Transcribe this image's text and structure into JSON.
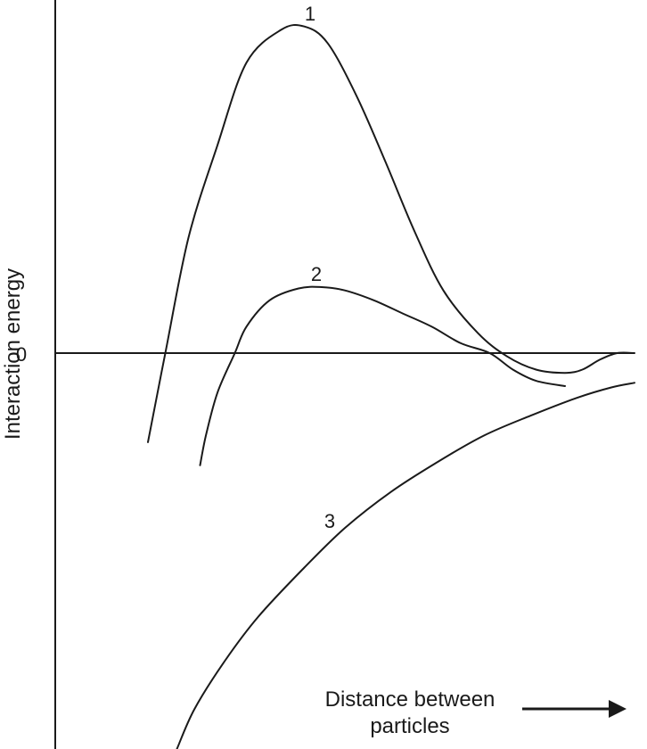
{
  "chart_data": {
    "type": "line",
    "ylabel": "Interaction energy",
    "xlabel": "Distance between particles",
    "xlabel_lines": [
      "Distance between",
      "particles"
    ],
    "y_ticks": [
      "0"
    ],
    "x_arrow_icon": "right-arrow-icon",
    "grid": false,
    "xlim": [
      0,
      10
    ],
    "ylim": [
      -6,
      5
    ],
    "series": [
      {
        "name": "1",
        "x": [
          1.6,
          1.9,
          2.3,
          2.8,
          3.3,
          3.9,
          4.3,
          4.7,
          5.2,
          5.7,
          6.2,
          6.7,
          7.3,
          7.8,
          8.3,
          8.8,
          9.1,
          9.4,
          9.7,
          10.0
        ],
        "y": [
          -1.35,
          0.0,
          1.75,
          3.15,
          4.4,
          4.9,
          4.95,
          4.7,
          3.9,
          2.9,
          1.85,
          0.95,
          0.3,
          -0.05,
          -0.25,
          -0.3,
          -0.25,
          -0.1,
          0.0,
          0.0
        ]
      },
      {
        "name": "2",
        "x": [
          2.5,
          2.6,
          2.8,
          3.1,
          3.3,
          3.7,
          4.2,
          4.6,
          5.0,
          5.5,
          6.0,
          6.5,
          7.0,
          7.5,
          7.9,
          8.3,
          8.8
        ],
        "y": [
          -1.7,
          -1.25,
          -0.6,
          0.0,
          0.4,
          0.8,
          0.98,
          1.0,
          0.95,
          0.8,
          0.6,
          0.4,
          0.15,
          0.0,
          -0.25,
          -0.42,
          -0.5
        ]
      },
      {
        "name": "3",
        "x": [
          2.1,
          2.4,
          2.9,
          3.5,
          4.3,
          5.0,
          5.8,
          6.6,
          7.4,
          8.2,
          9.0,
          9.6,
          10.0
        ],
        "y": [
          -6.0,
          -5.4,
          -4.7,
          -4.0,
          -3.25,
          -2.65,
          -2.1,
          -1.65,
          -1.25,
          -0.95,
          -0.68,
          -0.52,
          -0.45
        ]
      }
    ]
  }
}
